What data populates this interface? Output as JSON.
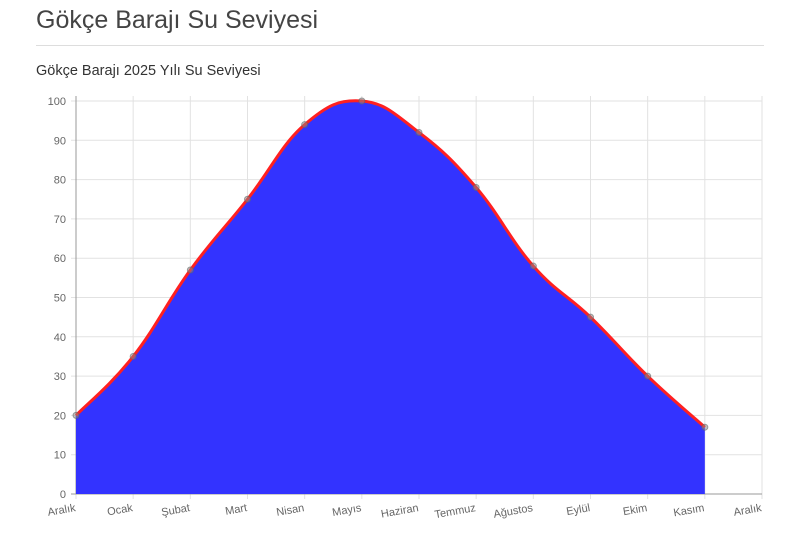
{
  "page": {
    "title": "Gökçe Barajı Su Seviyesi",
    "subtitle": "Gökçe Barajı 2025 Yılı Su Seviyesi"
  },
  "chart_data": {
    "type": "area",
    "title": "Gökçe Barajı 2025 Yılı Su Seviyesi",
    "categories": [
      "Aralık",
      "Ocak",
      "Şubat",
      "Mart",
      "Nisan",
      "Mayıs",
      "Haziran",
      "Temmuz",
      "Ağustos",
      "Eylül",
      "Ekim",
      "Kasım",
      "Aralık"
    ],
    "values": [
      20,
      35,
      57,
      75,
      94,
      100,
      92,
      78,
      58,
      45,
      30,
      17,
      null
    ],
    "ylim": [
      0,
      100
    ],
    "yticks": [
      0,
      10,
      20,
      30,
      40,
      50,
      60,
      70,
      80,
      90,
      100
    ],
    "grid": true,
    "legend": "none",
    "colors": {
      "fill": "#3333ff",
      "line": "#ff2020",
      "point": "#888888"
    }
  }
}
